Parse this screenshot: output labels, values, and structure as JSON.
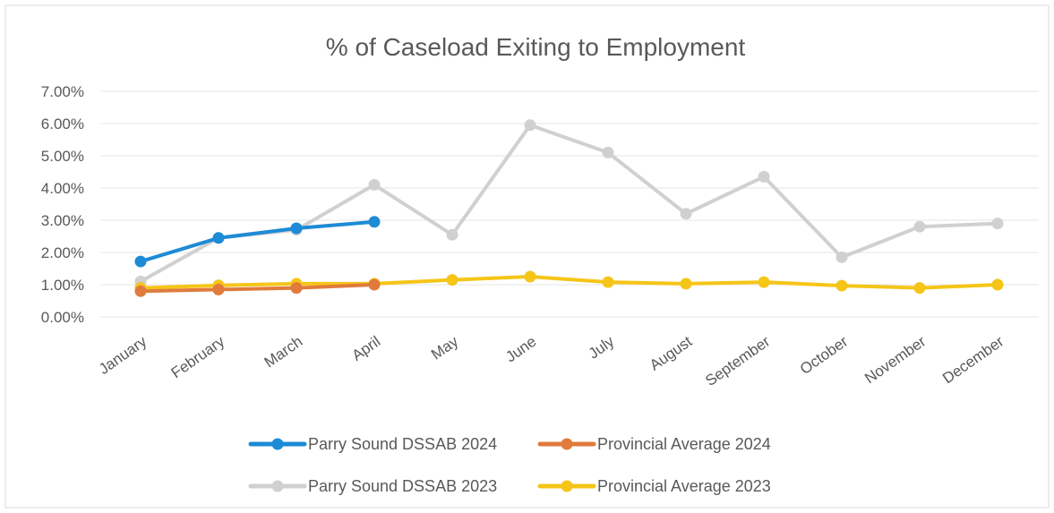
{
  "chart_data": {
    "type": "line",
    "title": "% of Caseload Exiting to Employment",
    "xlabel": "",
    "ylabel": "",
    "categories": [
      "January",
      "February",
      "March",
      "April",
      "May",
      "June",
      "July",
      "August",
      "September",
      "October",
      "November",
      "December"
    ],
    "ylim": [
      0,
      7
    ],
    "yticks": [
      "0.00%",
      "1.00%",
      "2.00%",
      "3.00%",
      "4.00%",
      "5.00%",
      "6.00%",
      "7.00%"
    ],
    "grid": true,
    "legend_position": "bottom",
    "series": [
      {
        "name": "Parry Sound DSSAB 2023",
        "color": "#d0d0d0",
        "values": [
          1.1,
          2.45,
          2.7,
          4.1,
          2.55,
          5.95,
          5.1,
          3.2,
          4.35,
          1.85,
          2.8,
          2.9
        ]
      },
      {
        "name": "Provincial Average 2023",
        "color": "#f5c518",
        "values": [
          0.9,
          0.98,
          1.03,
          1.03,
          1.15,
          1.25,
          1.08,
          1.03,
          1.08,
          0.97,
          0.9,
          1.0
        ]
      },
      {
        "name": "Provincial Average 2024",
        "color": "#e07b3c",
        "values": [
          0.8,
          0.85,
          0.9,
          1.0,
          null,
          null,
          null,
          null,
          null,
          null,
          null,
          null
        ]
      },
      {
        "name": "Parry Sound DSSAB 2024",
        "color": "#1e8bd6",
        "values": [
          1.72,
          2.45,
          2.75,
          2.95,
          null,
          null,
          null,
          null,
          null,
          null,
          null,
          null
        ]
      }
    ],
    "legend": [
      {
        "name": "Parry Sound DSSAB 2024",
        "color": "#1e8bd6"
      },
      {
        "name": "Provincial Average 2024",
        "color": "#e07b3c"
      },
      {
        "name": "Parry Sound DSSAB 2023",
        "color": "#d0d0d0"
      },
      {
        "name": "Provincial Average 2023",
        "color": "#f5c518"
      }
    ]
  }
}
